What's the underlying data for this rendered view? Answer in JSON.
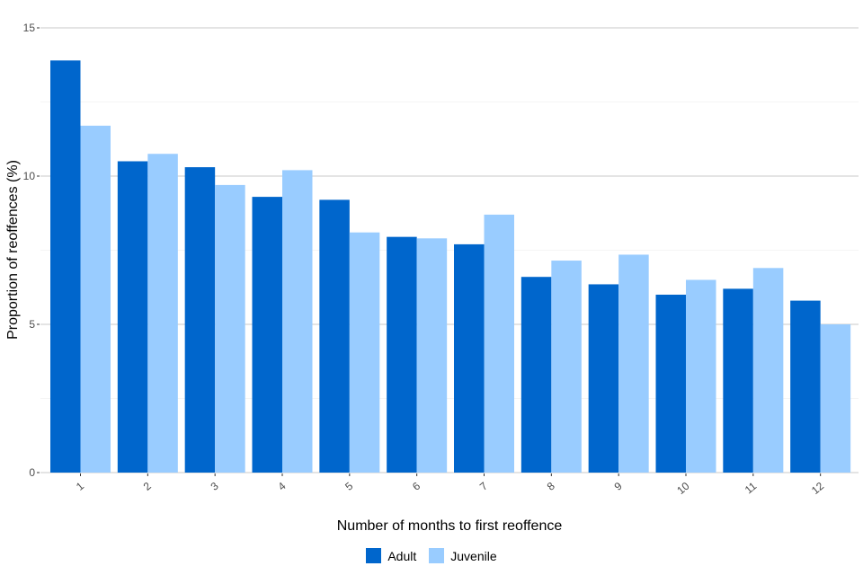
{
  "chart_data": {
    "type": "bar",
    "xlabel": "Number of months to first reoffence",
    "ylabel": "Proportion of reoffences (%)",
    "categories": [
      "1",
      "2",
      "3",
      "4",
      "5",
      "6",
      "7",
      "8",
      "9",
      "10",
      "11",
      "12"
    ],
    "series": [
      {
        "name": "Adult",
        "color": "#0066cc",
        "values": [
          13.9,
          10.5,
          10.3,
          9.3,
          9.2,
          7.95,
          7.7,
          6.6,
          6.35,
          6.0,
          6.2,
          5.8
        ]
      },
      {
        "name": "Juvenile",
        "color": "#99ccff",
        "values": [
          11.7,
          10.75,
          9.7,
          10.2,
          8.1,
          7.9,
          8.7,
          7.15,
          7.35,
          6.5,
          6.9,
          5.0
        ]
      }
    ],
    "ylim": [
      0,
      15
    ],
    "yticks": [
      0,
      5,
      10,
      15
    ],
    "grid": true,
    "legend_position": "bottom"
  }
}
